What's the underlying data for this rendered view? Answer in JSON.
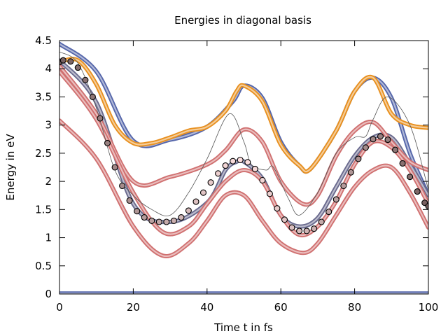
{
  "chart_data": {
    "type": "line",
    "title": "Energies in diagonal basis",
    "xlabel": "Time t in fs",
    "ylabel": "Energy in eV",
    "xlim": [
      0,
      100
    ],
    "ylim": [
      0,
      4.5
    ],
    "xticks": [
      0,
      20,
      40,
      60,
      80,
      100
    ],
    "yticks": [
      0,
      0.5,
      1,
      1.5,
      2,
      2.5,
      3,
      3.5,
      4,
      4.5
    ],
    "xtick_labels": [
      "0",
      "20",
      "40",
      "60",
      "80",
      "100"
    ],
    "ytick_labels": [
      "0",
      "0.5",
      "1",
      "1.5",
      "2",
      "2.5",
      "3",
      "3.5",
      "4",
      "4.5"
    ],
    "grid": false,
    "legend": "none",
    "series": [
      {
        "style": "band",
        "color": "#5566aa",
        "x": [
          0,
          10,
          20,
          30,
          40,
          47,
          50,
          55,
          60,
          65,
          68,
          75,
          80,
          85,
          90,
          95,
          100
        ],
        "y": [
          4.44,
          3.95,
          2.72,
          2.74,
          2.97,
          3.42,
          3.7,
          3.48,
          2.7,
          2.28,
          2.22,
          2.9,
          3.6,
          3.84,
          3.48,
          2.5,
          1.75
        ]
      },
      {
        "style": "band",
        "color": "#e8901f",
        "x": [
          0,
          5,
          10,
          15,
          20,
          25,
          30,
          35,
          40,
          45,
          48,
          50,
          55,
          60,
          65,
          68,
          75,
          80,
          85,
          90,
          95,
          100
        ],
        "y": [
          4.12,
          4.15,
          3.72,
          3.0,
          2.68,
          2.68,
          2.78,
          2.9,
          2.97,
          3.25,
          3.6,
          3.7,
          3.42,
          2.65,
          2.28,
          2.22,
          2.9,
          3.6,
          3.84,
          3.2,
          3.0,
          2.95
        ]
      },
      {
        "style": "band",
        "color": "#6a6a8e",
        "x": [
          0,
          10,
          20,
          30,
          40,
          45,
          48,
          50,
          55,
          60,
          65,
          70,
          75,
          80,
          85,
          90,
          95,
          100
        ],
        "y": [
          4.15,
          3.4,
          1.6,
          1.28,
          1.62,
          2.2,
          2.35,
          2.35,
          2.05,
          1.4,
          1.2,
          1.35,
          1.9,
          2.45,
          2.78,
          2.78,
          2.3,
          1.75
        ]
      },
      {
        "style": "band",
        "color": "#d07070",
        "x": [
          0,
          10,
          20,
          30,
          40,
          45,
          50,
          55,
          60,
          66,
          70,
          75,
          80,
          85,
          90,
          95,
          100
        ],
        "y": [
          4.05,
          3.2,
          2.0,
          2.08,
          2.3,
          2.55,
          2.92,
          2.7,
          2.0,
          1.6,
          1.75,
          2.45,
          2.9,
          3.05,
          2.7,
          2.35,
          2.2
        ]
      },
      {
        "style": "band",
        "color": "#d07070",
        "x": [
          0,
          10,
          20,
          28,
          35,
          40,
          45,
          50,
          55,
          60,
          65,
          70,
          75,
          80,
          85,
          90,
          95,
          100
        ],
        "y": [
          3.95,
          3.1,
          1.8,
          1.1,
          1.2,
          1.6,
          2.0,
          2.2,
          2.0,
          1.4,
          1.05,
          1.2,
          1.65,
          2.3,
          2.7,
          2.6,
          2.2,
          1.6
        ]
      },
      {
        "style": "band",
        "color": "#d07070",
        "x": [
          0,
          10,
          20,
          28,
          35,
          40,
          45,
          50,
          55,
          60,
          66,
          70,
          75,
          80,
          85,
          90,
          95,
          100
        ],
        "y": [
          3.08,
          2.4,
          1.2,
          0.68,
          0.9,
          1.3,
          1.75,
          1.75,
          1.3,
          0.9,
          0.73,
          0.9,
          1.4,
          1.9,
          2.2,
          2.25,
          1.8,
          1.18
        ]
      },
      {
        "style": "band",
        "color": "#5566aa",
        "x": [
          0,
          100
        ],
        "y": [
          0.01,
          0.01
        ]
      },
      {
        "style": "thin",
        "color": "#555555",
        "x": [
          0,
          5,
          10,
          15,
          20,
          25,
          30,
          35,
          40,
          46,
          50,
          52,
          56,
          58,
          62,
          65,
          70,
          75,
          80,
          83,
          85,
          89,
          95,
          100
        ],
        "y": [
          4.3,
          4.1,
          3.3,
          2.2,
          1.75,
          1.5,
          1.4,
          1.8,
          2.4,
          3.2,
          2.7,
          2.3,
          2.2,
          2.25,
          1.7,
          1.4,
          1.8,
          2.5,
          2.78,
          2.8,
          3.1,
          3.5,
          3.0,
          1.85
        ]
      },
      {
        "style": "markers",
        "x": [
          0,
          1,
          3,
          5,
          7,
          9,
          11,
          13,
          15,
          17,
          19,
          21,
          23,
          25,
          27,
          29,
          31,
          33,
          35,
          37,
          39,
          41,
          43,
          45,
          47,
          49,
          51,
          53,
          55,
          57,
          59,
          61,
          63,
          65,
          67,
          69,
          71,
          73,
          75,
          77,
          79,
          81,
          83,
          85,
          87,
          89,
          91,
          93,
          95,
          97,
          99,
          100
        ],
        "y": [
          4.12,
          4.15,
          4.13,
          4.02,
          3.8,
          3.5,
          3.12,
          2.68,
          2.25,
          1.92,
          1.66,
          1.47,
          1.36,
          1.3,
          1.28,
          1.28,
          1.3,
          1.36,
          1.48,
          1.64,
          1.8,
          1.98,
          2.14,
          2.28,
          2.36,
          2.38,
          2.34,
          2.22,
          2.02,
          1.78,
          1.52,
          1.32,
          1.18,
          1.12,
          1.12,
          1.16,
          1.28,
          1.46,
          1.68,
          1.92,
          2.16,
          2.4,
          2.6,
          2.75,
          2.8,
          2.74,
          2.56,
          2.32,
          2.08,
          1.82,
          1.62,
          1.56
        ]
      }
    ]
  }
}
